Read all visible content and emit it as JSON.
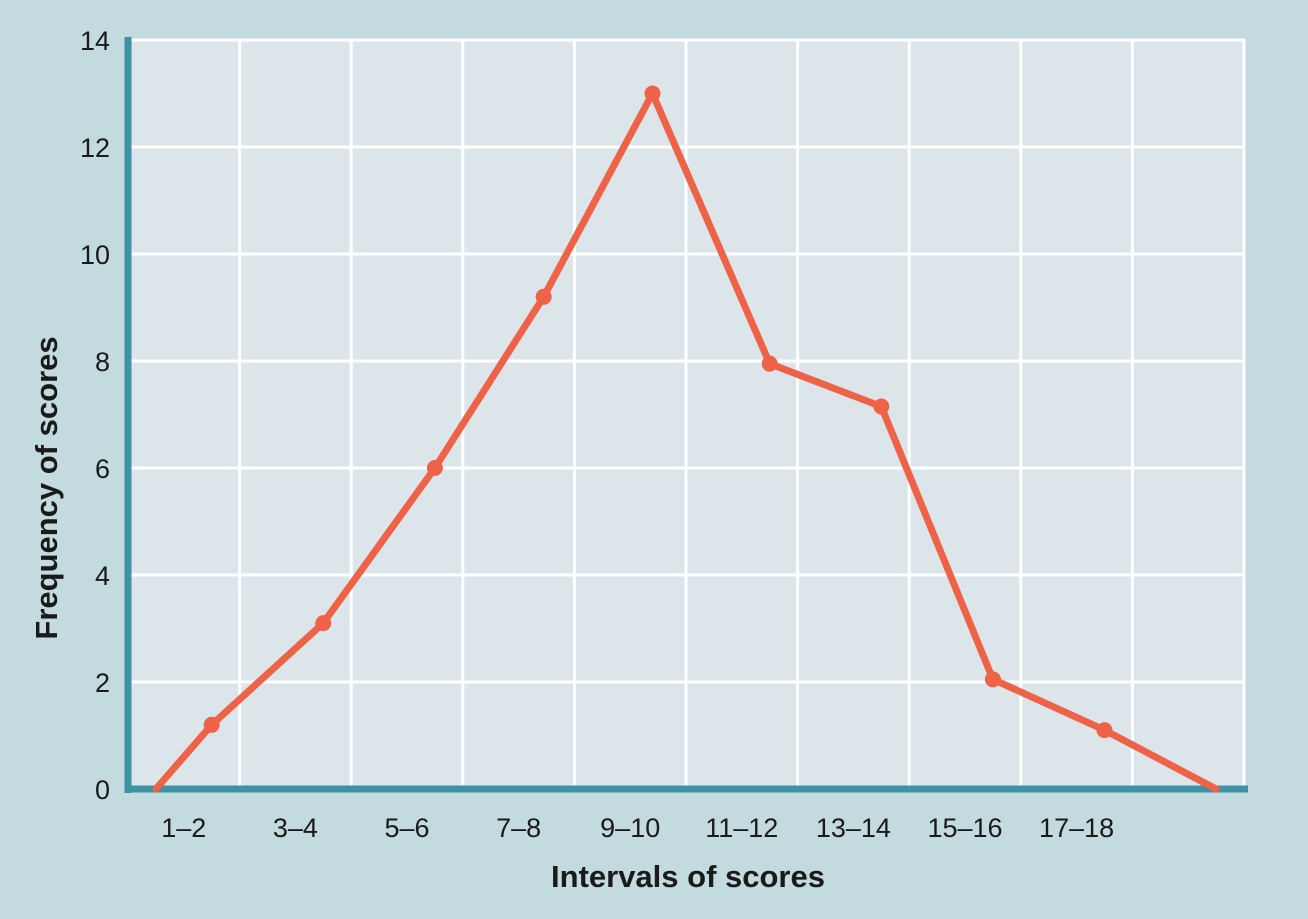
{
  "chart_data": {
    "type": "line",
    "title": "",
    "xlabel": "Intervals of scores",
    "ylabel": "Frequency of scores",
    "categories": [
      "1–2",
      "3–4",
      "5–6",
      "7–8",
      "9–10",
      "11–12",
      "13–14",
      "15–16",
      "17–18"
    ],
    "y_ticks": [
      "0",
      "2",
      "4",
      "6",
      "8",
      "10",
      "12",
      "14"
    ],
    "ylim": [
      0,
      14
    ],
    "grid": true,
    "legend": "none",
    "series": [
      {
        "points": [
          {
            "x": 0.5,
            "y": 0,
            "marker": false
          },
          {
            "x": 1.5,
            "y": 1.2,
            "marker": true
          },
          {
            "x": 3.5,
            "y": 3.1,
            "marker": true
          },
          {
            "x": 5.5,
            "y": 6.0,
            "marker": true
          },
          {
            "x": 7.45,
            "y": 9.2,
            "marker": true
          },
          {
            "x": 9.4,
            "y": 13.0,
            "marker": true
          },
          {
            "x": 11.5,
            "y": 7.95,
            "marker": true
          },
          {
            "x": 13.5,
            "y": 7.15,
            "marker": true
          },
          {
            "x": 15.5,
            "y": 2.05,
            "marker": true
          },
          {
            "x": 17.5,
            "y": 1.1,
            "marker": true
          },
          {
            "x": 19.5,
            "y": 0,
            "marker": false
          }
        ]
      }
    ],
    "colors": {
      "background": "#c3dadf",
      "plot_area": "#dce6ea",
      "grid": "#ffffff",
      "axis": "#3d92a4",
      "line": "#ee6348"
    }
  }
}
